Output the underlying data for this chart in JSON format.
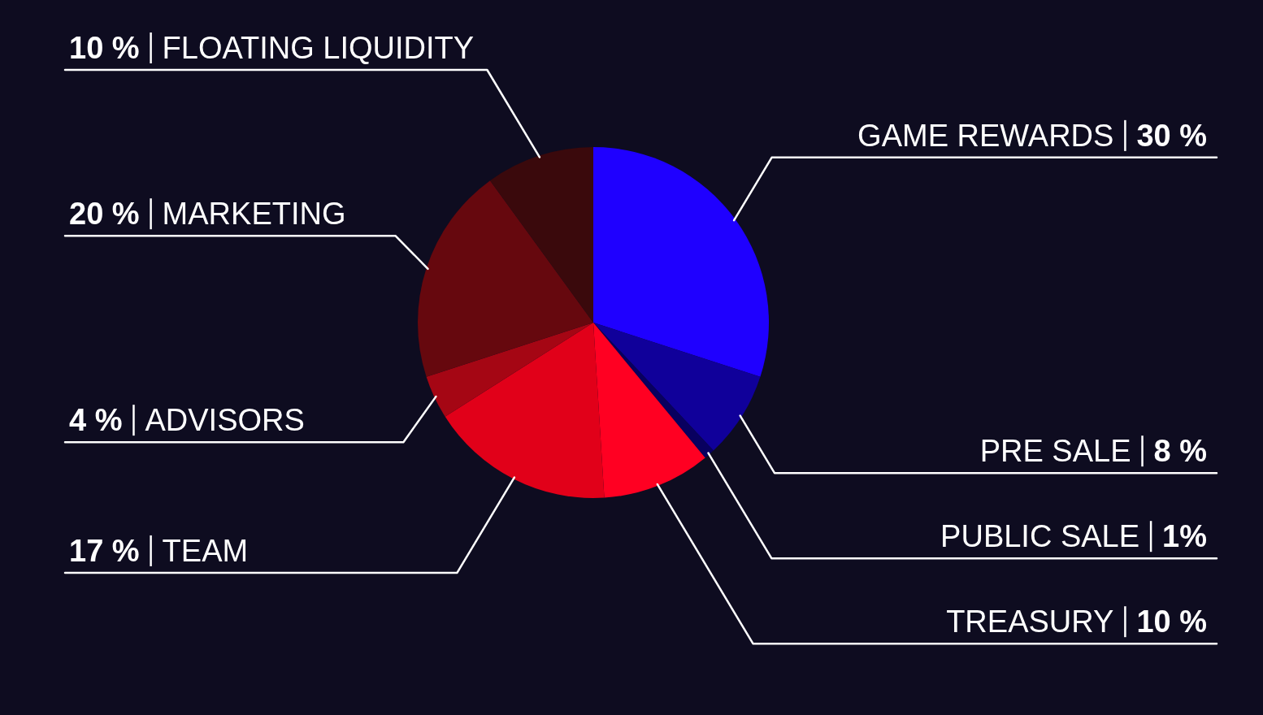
{
  "chart_data": {
    "type": "pie",
    "categories": [
      "GAME REWARDS",
      "PRE SALE",
      "PUBLIC SALE",
      "TREASURY",
      "TEAM",
      "ADVISORS",
      "MARKETING",
      "FLOATING LIQUIDITY"
    ],
    "values": [
      30,
      8,
      1,
      10,
      17,
      4,
      20,
      10
    ],
    "colors": [
      "#1f00ff",
      "#10009a",
      "#08005f",
      "#ff0022",
      "#e10019",
      "#a50614",
      "#66080e",
      "#3a090c"
    ],
    "value_labels": [
      "30 %",
      "8 %",
      "1%",
      "10 %",
      "17 %",
      "4 %",
      "20 %",
      "10 %"
    ]
  }
}
